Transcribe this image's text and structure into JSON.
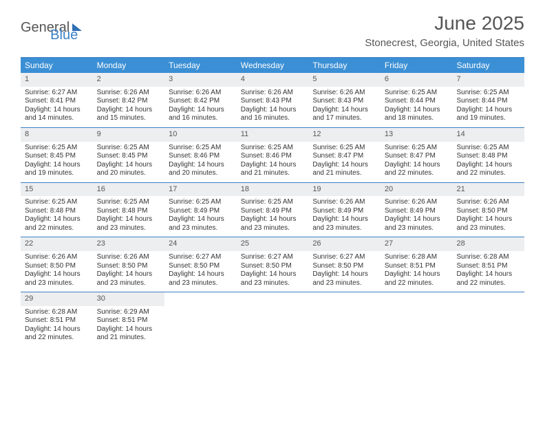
{
  "brand": {
    "part1": "General",
    "part2": "Blue"
  },
  "title": "June 2025",
  "location": "Stonecrest, Georgia, United States",
  "colors": {
    "accent": "#3b8fd4",
    "accent_border": "#3b7fc4",
    "daynum_bg": "#eceef0",
    "text": "#333333",
    "muted": "#555555"
  },
  "dayHeaders": [
    "Sunday",
    "Monday",
    "Tuesday",
    "Wednesday",
    "Thursday",
    "Friday",
    "Saturday"
  ],
  "days": [
    {
      "n": 1,
      "sr": "6:27 AM",
      "ss": "8:41 PM",
      "dl": "14 hours and 14 minutes."
    },
    {
      "n": 2,
      "sr": "6:26 AM",
      "ss": "8:42 PM",
      "dl": "14 hours and 15 minutes."
    },
    {
      "n": 3,
      "sr": "6:26 AM",
      "ss": "8:42 PM",
      "dl": "14 hours and 16 minutes."
    },
    {
      "n": 4,
      "sr": "6:26 AM",
      "ss": "8:43 PM",
      "dl": "14 hours and 16 minutes."
    },
    {
      "n": 5,
      "sr": "6:26 AM",
      "ss": "8:43 PM",
      "dl": "14 hours and 17 minutes."
    },
    {
      "n": 6,
      "sr": "6:25 AM",
      "ss": "8:44 PM",
      "dl": "14 hours and 18 minutes."
    },
    {
      "n": 7,
      "sr": "6:25 AM",
      "ss": "8:44 PM",
      "dl": "14 hours and 19 minutes."
    },
    {
      "n": 8,
      "sr": "6:25 AM",
      "ss": "8:45 PM",
      "dl": "14 hours and 19 minutes."
    },
    {
      "n": 9,
      "sr": "6:25 AM",
      "ss": "8:45 PM",
      "dl": "14 hours and 20 minutes."
    },
    {
      "n": 10,
      "sr": "6:25 AM",
      "ss": "8:46 PM",
      "dl": "14 hours and 20 minutes."
    },
    {
      "n": 11,
      "sr": "6:25 AM",
      "ss": "8:46 PM",
      "dl": "14 hours and 21 minutes."
    },
    {
      "n": 12,
      "sr": "6:25 AM",
      "ss": "8:47 PM",
      "dl": "14 hours and 21 minutes."
    },
    {
      "n": 13,
      "sr": "6:25 AM",
      "ss": "8:47 PM",
      "dl": "14 hours and 22 minutes."
    },
    {
      "n": 14,
      "sr": "6:25 AM",
      "ss": "8:48 PM",
      "dl": "14 hours and 22 minutes."
    },
    {
      "n": 15,
      "sr": "6:25 AM",
      "ss": "8:48 PM",
      "dl": "14 hours and 22 minutes."
    },
    {
      "n": 16,
      "sr": "6:25 AM",
      "ss": "8:48 PM",
      "dl": "14 hours and 23 minutes."
    },
    {
      "n": 17,
      "sr": "6:25 AM",
      "ss": "8:49 PM",
      "dl": "14 hours and 23 minutes."
    },
    {
      "n": 18,
      "sr": "6:25 AM",
      "ss": "8:49 PM",
      "dl": "14 hours and 23 minutes."
    },
    {
      "n": 19,
      "sr": "6:26 AM",
      "ss": "8:49 PM",
      "dl": "14 hours and 23 minutes."
    },
    {
      "n": 20,
      "sr": "6:26 AM",
      "ss": "8:49 PM",
      "dl": "14 hours and 23 minutes."
    },
    {
      "n": 21,
      "sr": "6:26 AM",
      "ss": "8:50 PM",
      "dl": "14 hours and 23 minutes."
    },
    {
      "n": 22,
      "sr": "6:26 AM",
      "ss": "8:50 PM",
      "dl": "14 hours and 23 minutes."
    },
    {
      "n": 23,
      "sr": "6:26 AM",
      "ss": "8:50 PM",
      "dl": "14 hours and 23 minutes."
    },
    {
      "n": 24,
      "sr": "6:27 AM",
      "ss": "8:50 PM",
      "dl": "14 hours and 23 minutes."
    },
    {
      "n": 25,
      "sr": "6:27 AM",
      "ss": "8:50 PM",
      "dl": "14 hours and 23 minutes."
    },
    {
      "n": 26,
      "sr": "6:27 AM",
      "ss": "8:50 PM",
      "dl": "14 hours and 23 minutes."
    },
    {
      "n": 27,
      "sr": "6:28 AM",
      "ss": "8:51 PM",
      "dl": "14 hours and 22 minutes."
    },
    {
      "n": 28,
      "sr": "6:28 AM",
      "ss": "8:51 PM",
      "dl": "14 hours and 22 minutes."
    },
    {
      "n": 29,
      "sr": "6:28 AM",
      "ss": "8:51 PM",
      "dl": "14 hours and 22 minutes."
    },
    {
      "n": 30,
      "sr": "6:29 AM",
      "ss": "8:51 PM",
      "dl": "14 hours and 21 minutes."
    }
  ],
  "labels": {
    "sunrise": "Sunrise:",
    "sunset": "Sunset:",
    "daylight": "Daylight:"
  },
  "layout": {
    "columns": 7,
    "startColumn": 0,
    "totalCells": 35
  }
}
